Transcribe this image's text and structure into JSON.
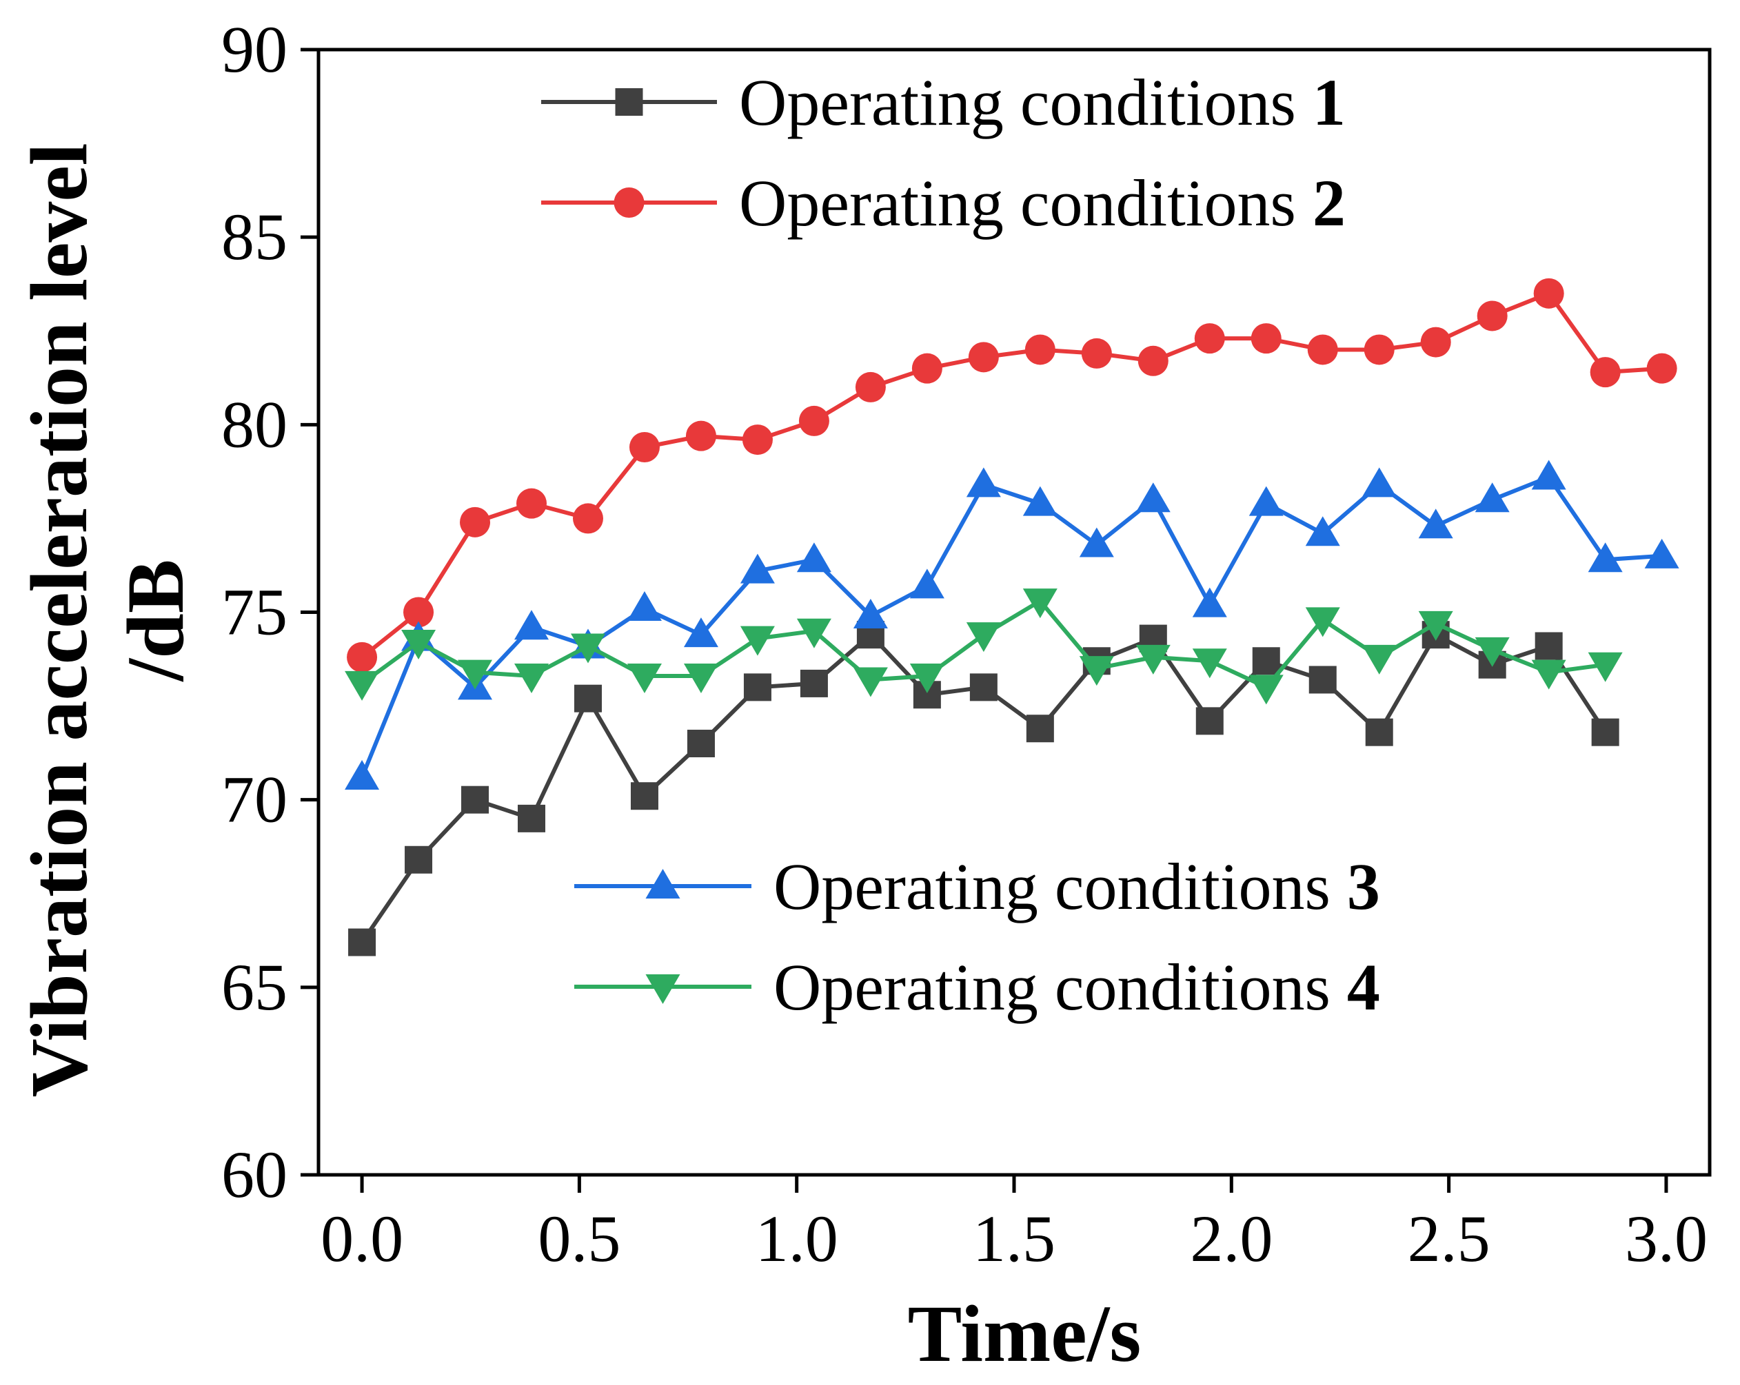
{
  "chart_data": {
    "type": "line",
    "title": "",
    "xlabel": "Time/s",
    "ylabel_line1": "Vibration acceleration level",
    "ylabel_line2": "/dB",
    "xlim": [
      -0.1,
      3.1
    ],
    "ylim": [
      60,
      90
    ],
    "xticks": [
      0.0,
      0.5,
      1.0,
      1.5,
      2.0,
      2.5,
      3.0
    ],
    "xtick_labels": [
      "0.0",
      "0.5",
      "1.0",
      "1.5",
      "2.0",
      "2.5",
      "3.0"
    ],
    "yticks": [
      60,
      65,
      70,
      75,
      80,
      85,
      90
    ],
    "ytick_labels": [
      "60",
      "65",
      "70",
      "75",
      "80",
      "85",
      "90"
    ],
    "grid": false,
    "series": [
      {
        "name": "Operating conditions 1",
        "label_text": "Operating conditions ",
        "label_num": "1",
        "color": "#404040",
        "marker": "square",
        "x": [
          0.0,
          0.13,
          0.26,
          0.39,
          0.52,
          0.65,
          0.78,
          0.91,
          1.04,
          1.17,
          1.3,
          1.43,
          1.56,
          1.69,
          1.82,
          1.95,
          2.08,
          2.21,
          2.34,
          2.47,
          2.6,
          2.73,
          2.86
        ],
        "values": [
          66.2,
          68.4,
          70.0,
          69.5,
          72.7,
          70.1,
          71.5,
          73.0,
          73.1,
          74.4,
          72.8,
          73.0,
          71.9,
          73.7,
          74.3,
          72.1,
          73.7,
          73.2,
          71.8,
          74.4,
          73.6,
          74.1,
          71.8
        ]
      },
      {
        "name": "Operating conditions 2",
        "label_text": "Operating conditions ",
        "label_num": "2",
        "color": "#e8393a",
        "marker": "circle",
        "x": [
          0.0,
          0.13,
          0.26,
          0.39,
          0.52,
          0.65,
          0.78,
          0.91,
          1.04,
          1.17,
          1.3,
          1.43,
          1.56,
          1.69,
          1.82,
          1.95,
          2.08,
          2.21,
          2.34,
          2.47,
          2.6,
          2.73,
          2.86,
          2.99
        ],
        "values": [
          73.8,
          75.0,
          77.4,
          77.9,
          77.5,
          79.4,
          79.7,
          79.6,
          80.1,
          81.0,
          81.5,
          81.8,
          82.0,
          81.9,
          81.7,
          82.3,
          82.3,
          82.0,
          82.0,
          82.2,
          82.9,
          83.5,
          81.4,
          81.5
        ]
      },
      {
        "name": "Operating conditions 3",
        "label_text": "Operating conditions ",
        "label_num": "3",
        "color": "#1f6fe0",
        "marker": "triangle-up",
        "x": [
          0.0,
          0.13,
          0.26,
          0.39,
          0.52,
          0.65,
          0.78,
          0.91,
          1.04,
          1.17,
          1.3,
          1.43,
          1.56,
          1.69,
          1.82,
          1.95,
          2.08,
          2.21,
          2.34,
          2.47,
          2.6,
          2.73,
          2.86,
          2.99
        ],
        "values": [
          70.6,
          74.3,
          73.0,
          74.6,
          74.1,
          75.1,
          74.4,
          76.1,
          76.4,
          74.9,
          75.7,
          78.4,
          77.9,
          76.8,
          78.0,
          75.2,
          77.9,
          77.1,
          78.4,
          77.3,
          78.0,
          78.6,
          76.4,
          76.5
        ]
      },
      {
        "name": "Operating conditions 4",
        "label_text": "Operating conditions ",
        "label_num": "4",
        "color": "#2eab5f",
        "marker": "triangle-down",
        "x": [
          0.0,
          0.13,
          0.26,
          0.39,
          0.52,
          0.65,
          0.78,
          0.91,
          1.04,
          1.17,
          1.3,
          1.43,
          1.56,
          1.69,
          1.82,
          1.95,
          2.08,
          2.21,
          2.34,
          2.47,
          2.6,
          2.73,
          2.86
        ],
        "values": [
          73.1,
          74.2,
          73.4,
          73.3,
          74.1,
          73.3,
          73.3,
          74.3,
          74.5,
          73.2,
          73.3,
          74.4,
          75.3,
          73.5,
          73.8,
          73.7,
          73.0,
          74.8,
          73.8,
          74.7,
          74.0,
          73.4,
          73.6
        ]
      }
    ]
  }
}
